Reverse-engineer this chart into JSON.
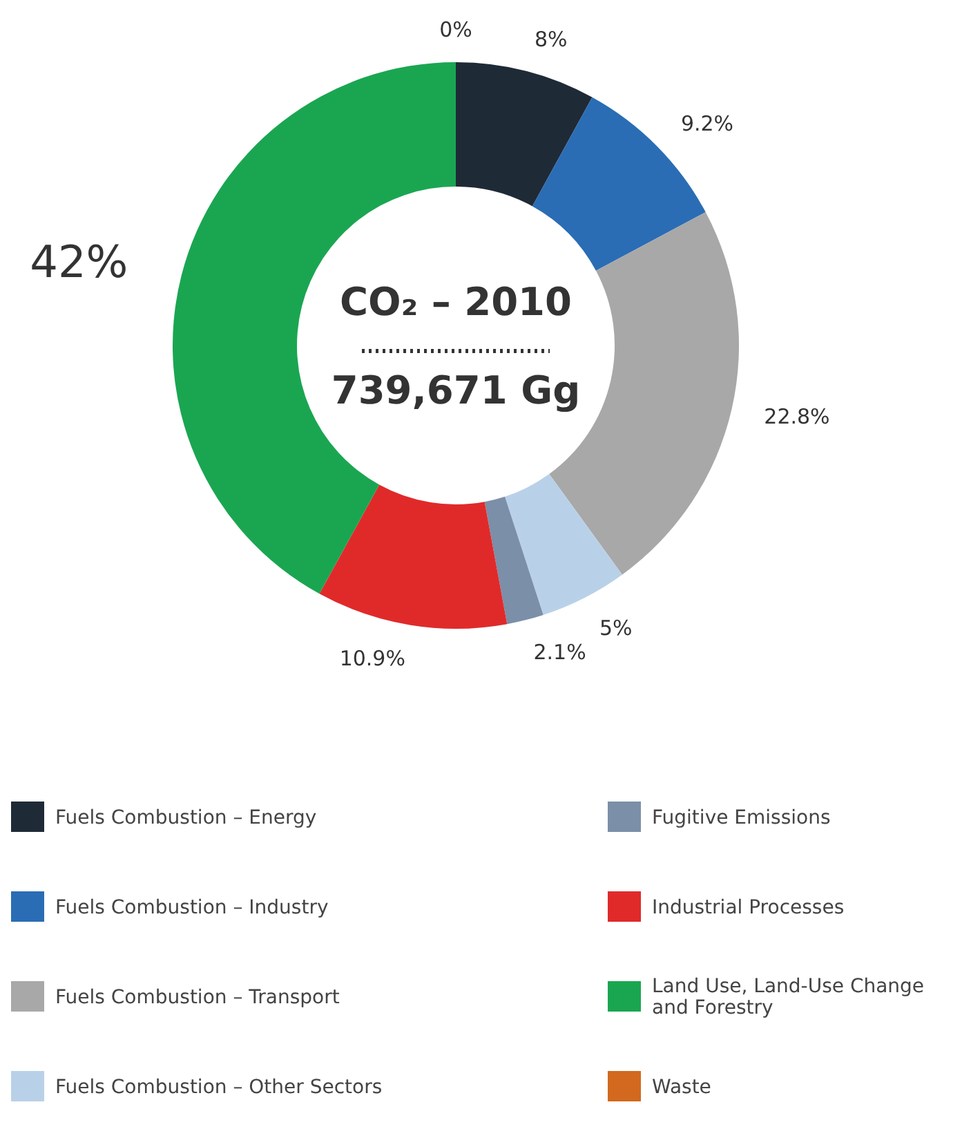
{
  "chart_data": {
    "type": "donut",
    "categories": [
      "Fuels Combustion – Energy",
      "Fuels Combustion – Industry",
      "Fuels Combustion – Transport",
      "Fuels Combustion – Other Sectors",
      "Fugitive Emissions",
      "Industrial Processes",
      "Land Use, Land-Use Change and Forestry",
      "Waste"
    ],
    "values": [
      8,
      9.2,
      22.8,
      5,
      2.1,
      10.9,
      42,
      0
    ],
    "colors": [
      "#1f2a37",
      "#2a6db5",
      "#a8a8a8",
      "#b9d1e8",
      "#7b8fa8",
      "#e02a2a",
      "#1aa651",
      "#d2691e"
    ],
    "value_labels": [
      "8%",
      "9.2%",
      "22.8%",
      "5%",
      "2.1%",
      "10.9%",
      "42%",
      "0%"
    ],
    "annotations": [
      "CO₂ – 2010",
      "739,671 Gg"
    ],
    "legend": "bottom"
  }
}
